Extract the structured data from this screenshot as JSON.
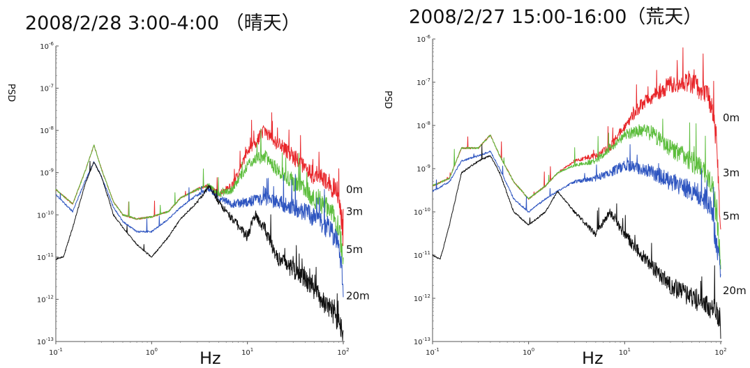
{
  "chart_data": [
    {
      "type": "line",
      "title": "2008/2/28 3:00-4:00 （晴天）",
      "xlabel": "Hz",
      "ylabel": "PSD",
      "xscale": "log",
      "yscale": "log",
      "xlim": [
        0.1,
        100
      ],
      "ylim": [
        1e-13,
        1e-06
      ],
      "x_ticks": [
        "10^-1",
        "10^0",
        "10^1",
        "10^2"
      ],
      "y_ticks": [
        "10^-6",
        "10^-7",
        "10^-8",
        "10^-9",
        "10^-10",
        "10^-11",
        "10^-12",
        "10^-13"
      ],
      "grid": false,
      "series": [
        {
          "name": "0m",
          "color": "#e8262a",
          "x": [
            0.1,
            0.15,
            0.2,
            0.25,
            0.3,
            0.4,
            0.5,
            0.7,
            1.0,
            1.5,
            2.0,
            3.0,
            4.0,
            5.0,
            7.0,
            10,
            12,
            15,
            20,
            30,
            40,
            50,
            70,
            90,
            100
          ],
          "y": [
            4e-10,
            1.8e-10,
            1e-09,
            4.5e-09,
            1.2e-09,
            2e-10,
            1e-10,
            8e-11,
            9e-11,
            1.2e-10,
            2.5e-10,
            4e-10,
            5e-10,
            3e-10,
            5e-10,
            3e-09,
            5e-09,
            1e-08,
            5e-09,
            2.5e-09,
            1.2e-09,
            9e-10,
            6e-10,
            3e-10,
            3e-11
          ]
        },
        {
          "name": "3m",
          "color": "#5cbd3c",
          "x": [
            0.1,
            0.15,
            0.2,
            0.25,
            0.3,
            0.4,
            0.5,
            0.7,
            1.0,
            1.5,
            2.0,
            3.0,
            4.0,
            5.0,
            7.0,
            10,
            12,
            15,
            20,
            30,
            40,
            50,
            70,
            90,
            100
          ],
          "y": [
            4e-10,
            1.8e-10,
            1e-09,
            4.5e-09,
            1.2e-09,
            2e-10,
            1e-10,
            8e-11,
            9e-11,
            1.2e-10,
            2.5e-10,
            4e-10,
            5e-10,
            3e-10,
            4e-10,
            1.5e-09,
            2e-09,
            2.5e-09,
            1.2e-09,
            6e-10,
            4e-10,
            2.5e-10,
            1.5e-10,
            5e-11,
            1e-11
          ]
        },
        {
          "name": "5m",
          "color": "#2e55c0",
          "x": [
            0.1,
            0.15,
            0.2,
            0.25,
            0.3,
            0.4,
            0.5,
            0.7,
            1.0,
            1.5,
            2.0,
            3.0,
            4.0,
            5.0,
            7.0,
            10,
            12,
            15,
            20,
            30,
            40,
            50,
            70,
            90,
            100
          ],
          "y": [
            3e-10,
            1.2e-10,
            6e-10,
            1.8e-09,
            8e-10,
            1.5e-10,
            7e-11,
            4e-11,
            4e-11,
            8e-11,
            1.5e-10,
            3e-10,
            4e-10,
            2.5e-10,
            1.8e-10,
            2e-10,
            2.2e-10,
            2.5e-10,
            2e-10,
            1.5e-10,
            1.2e-10,
            8e-11,
            5e-11,
            2e-11,
            2e-12
          ]
        },
        {
          "name": "20m",
          "color": "#111111",
          "x": [
            0.1,
            0.12,
            0.15,
            0.2,
            0.25,
            0.3,
            0.4,
            0.5,
            0.7,
            1.0,
            1.5,
            2.0,
            3.0,
            4.0,
            5.0,
            7.0,
            10,
            12,
            15,
            20,
            30,
            40,
            50,
            70,
            90,
            100
          ],
          "y": [
            9e-12,
            1e-11,
            5e-11,
            5e-10,
            1.8e-09,
            8e-10,
            1e-10,
            5e-11,
            2e-11,
            1e-11,
            3e-11,
            8e-11,
            2e-10,
            5e-10,
            2e-10,
            8e-11,
            3e-11,
            1e-10,
            5e-11,
            1e-11,
            5e-12,
            3e-12,
            1.5e-12,
            7e-13,
            3e-13,
            1.5e-13
          ]
        }
      ]
    },
    {
      "type": "line",
      "title": "2008/2/27 15:00-16:00（荒天）",
      "xlabel": "Hz",
      "ylabel": "PSD",
      "xscale": "log",
      "yscale": "log",
      "xlim": [
        0.1,
        100
      ],
      "ylim": [
        1e-13,
        1e-06
      ],
      "x_ticks": [
        "10^-1",
        "10^0",
        "10^1",
        "10^2"
      ],
      "y_ticks": [
        "10^-6",
        "10^-7",
        "10^-8",
        "10^-9",
        "10^-10",
        "10^-11",
        "10^-12",
        "10^-13"
      ],
      "grid": false,
      "series": [
        {
          "name": "0m",
          "color": "#e8262a",
          "x": [
            0.1,
            0.15,
            0.2,
            0.3,
            0.4,
            0.5,
            0.7,
            1.0,
            1.5,
            2.0,
            3.0,
            5.0,
            7.0,
            10,
            15,
            20,
            30,
            40,
            50,
            70,
            80,
            90,
            100
          ],
          "y": [
            4e-10,
            6e-10,
            3e-09,
            3e-09,
            6e-09,
            2e-09,
            5e-10,
            2e-10,
            4e-10,
            8e-10,
            1.5e-09,
            2e-09,
            3e-09,
            1e-08,
            3e-08,
            5e-08,
            9e-08,
            1e-07,
            9e-08,
            6e-08,
            3e-08,
            5e-09,
            3e-11
          ]
        },
        {
          "name": "3m",
          "color": "#5cbd3c",
          "x": [
            0.1,
            0.15,
            0.2,
            0.3,
            0.4,
            0.5,
            0.7,
            1.0,
            1.5,
            2.0,
            3.0,
            5.0,
            7.0,
            10,
            15,
            20,
            30,
            40,
            50,
            70,
            80,
            90,
            100
          ],
          "y": [
            4e-10,
            6e-10,
            3e-09,
            3e-09,
            6e-09,
            2e-09,
            5e-10,
            2e-10,
            4e-10,
            8e-10,
            1.2e-09,
            1.5e-09,
            3e-09,
            6e-09,
            8e-09,
            6e-09,
            3e-09,
            2e-09,
            1.5e-09,
            8e-10,
            5e-10,
            1e-10,
            5e-12
          ]
        },
        {
          "name": "5m",
          "color": "#2e55c0",
          "x": [
            0.1,
            0.15,
            0.2,
            0.3,
            0.4,
            0.5,
            0.7,
            1.0,
            1.5,
            2.0,
            3.0,
            5.0,
            7.0,
            10,
            15,
            20,
            30,
            40,
            50,
            70,
            80,
            90,
            100
          ],
          "y": [
            3e-10,
            5e-10,
            1.5e-09,
            2e-09,
            2.5e-09,
            1e-09,
            2e-10,
            1e-10,
            2e-10,
            3e-10,
            5e-10,
            6e-10,
            8e-10,
            1.2e-09,
            1e-09,
            8e-10,
            5e-10,
            4e-10,
            3e-10,
            2e-10,
            1e-10,
            2e-11,
            3e-12
          ]
        },
        {
          "name": "20m",
          "color": "#111111",
          "x": [
            0.1,
            0.12,
            0.15,
            0.2,
            0.3,
            0.4,
            0.5,
            0.7,
            1.0,
            1.5,
            2.0,
            3.0,
            5.0,
            7.0,
            10,
            15,
            20,
            30,
            50,
            70,
            90,
            100
          ],
          "y": [
            1e-11,
            8e-12,
            5e-11,
            8e-10,
            1.5e-09,
            2e-09,
            8e-10,
            1e-10,
            5e-11,
            1e-10,
            3e-10,
            1e-10,
            3e-11,
            1e-10,
            3e-11,
            1e-11,
            5e-12,
            2e-12,
            1e-12,
            8e-13,
            5e-13,
            2e-13
          ]
        }
      ]
    }
  ]
}
